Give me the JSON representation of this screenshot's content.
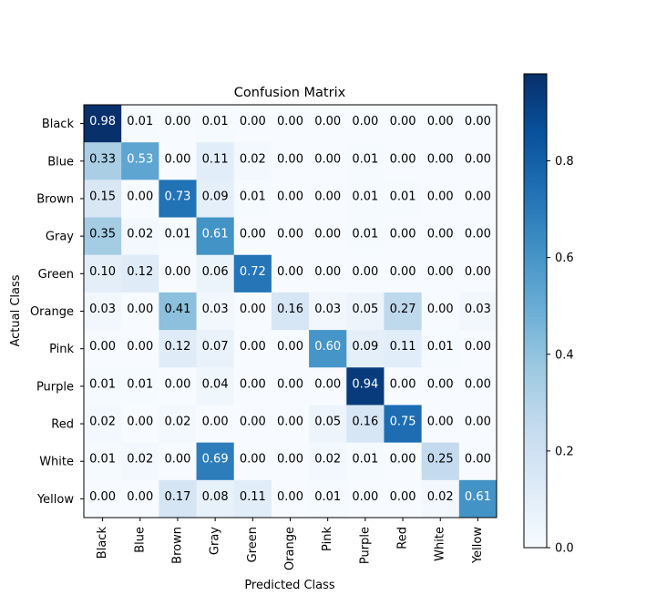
{
  "chart_data": {
    "type": "heatmap",
    "title": "Confusion Matrix",
    "xlabel": "Predicted Class",
    "ylabel": "Actual Class",
    "x_categories": [
      "Black",
      "Blue",
      "Brown",
      "Gray",
      "Green",
      "Orange",
      "Pink",
      "Purple",
      "Red",
      "White",
      "Yellow"
    ],
    "y_categories": [
      "Black",
      "Blue",
      "Brown",
      "Gray",
      "Green",
      "Orange",
      "Pink",
      "Purple",
      "Red",
      "White",
      "Yellow"
    ],
    "values": [
      [
        0.98,
        0.01,
        0.0,
        0.01,
        0.0,
        0.0,
        0.0,
        0.0,
        0.0,
        0.0,
        0.0
      ],
      [
        0.33,
        0.53,
        0.0,
        0.11,
        0.02,
        0.0,
        0.0,
        0.01,
        0.0,
        0.0,
        0.0
      ],
      [
        0.15,
        0.0,
        0.73,
        0.09,
        0.01,
        0.0,
        0.0,
        0.01,
        0.01,
        0.0,
        0.0
      ],
      [
        0.35,
        0.02,
        0.01,
        0.61,
        0.0,
        0.0,
        0.0,
        0.01,
        0.0,
        0.0,
        0.0
      ],
      [
        0.1,
        0.12,
        0.0,
        0.06,
        0.72,
        0.0,
        0.0,
        0.0,
        0.0,
        0.0,
        0.0
      ],
      [
        0.03,
        0.0,
        0.41,
        0.03,
        0.0,
        0.16,
        0.03,
        0.05,
        0.27,
        0.0,
        0.03
      ],
      [
        0.0,
        0.0,
        0.12,
        0.07,
        0.0,
        0.0,
        0.6,
        0.09,
        0.11,
        0.01,
        0.0
      ],
      [
        0.01,
        0.01,
        0.0,
        0.04,
        0.0,
        0.0,
        0.0,
        0.94,
        0.0,
        0.0,
        0.0
      ],
      [
        0.02,
        0.0,
        0.02,
        0.0,
        0.0,
        0.0,
        0.05,
        0.16,
        0.75,
        0.0,
        0.0
      ],
      [
        0.01,
        0.02,
        0.0,
        0.69,
        0.0,
        0.0,
        0.02,
        0.01,
        0.0,
        0.25,
        0.0
      ],
      [
        0.0,
        0.0,
        0.17,
        0.08,
        0.11,
        0.0,
        0.01,
        0.0,
        0.0,
        0.02,
        0.61
      ]
    ],
    "value_format": "0.00",
    "colormap": "Blues",
    "colormap_stops": [
      "#f7fbff",
      "#deebf7",
      "#c6dbef",
      "#9ecae1",
      "#6baed6",
      "#4292c6",
      "#2171b5",
      "#08519c",
      "#08306b"
    ],
    "colorbar": {
      "range": [
        0.0,
        0.98
      ],
      "ticks": [
        0.0,
        0.2,
        0.4,
        0.6,
        0.8
      ],
      "tick_labels": [
        "0.0",
        "0.2",
        "0.4",
        "0.6",
        "0.8"
      ]
    },
    "text_color_light": "#ffffff",
    "text_color_dark": "#000000",
    "grid": false,
    "legend": "none"
  }
}
